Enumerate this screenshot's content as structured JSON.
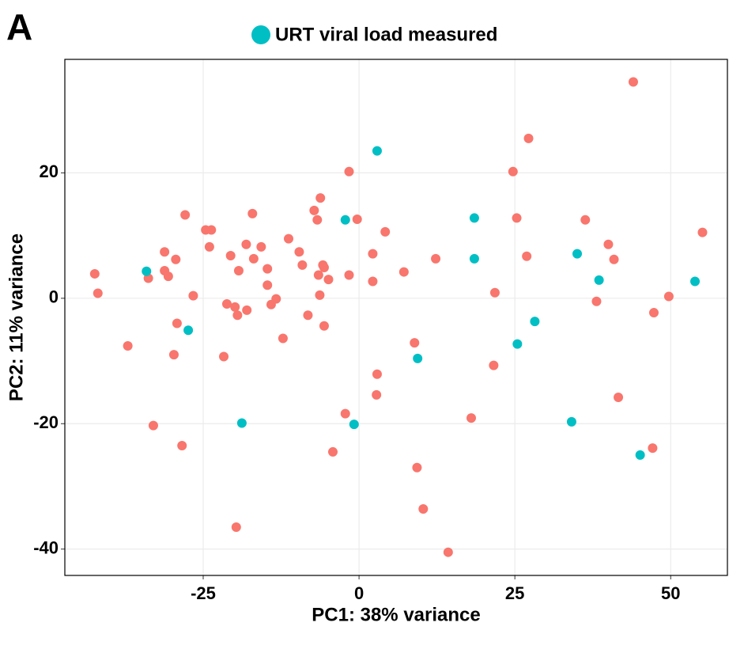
{
  "chart_data": {
    "type": "scatter",
    "panel_label": "A",
    "xlabel": "PC1: 38% variance",
    "ylabel": "PC2: 11% variance",
    "xlim": [
      -47.2,
      59.1
    ],
    "ylim": [
      -44.2,
      38.1
    ],
    "xticks": [
      -25,
      0,
      25,
      50
    ],
    "yticks": [
      -40,
      -20,
      0,
      20
    ],
    "grid": true,
    "legend": "top",
    "series": [
      {
        "color": "#f8766d",
        "x": [
          -42.4,
          -41.9,
          -37.1,
          -33.8,
          -33.0,
          -31.2,
          -31.2,
          -30.6,
          -29.4,
          -29.2,
          -29.7,
          -28.4,
          -27.9,
          -26.6,
          -24.6,
          -23.7,
          -24.0,
          -21.7,
          -21.2,
          -20.6,
          -19.9,
          -19.5,
          -19.3,
          -19.7,
          -18.1,
          -18.0,
          -17.1,
          -16.9,
          -15.7,
          -14.7,
          -14.7,
          -14.1,
          -13.3,
          -12.2,
          -11.3,
          -9.6,
          -9.1,
          -8.2,
          -7.2,
          -6.7,
          -6.2,
          -6.5,
          -6.3,
          -5.8,
          -5.6,
          -5.6,
          -4.9,
          -4.2,
          -2.2,
          -1.6,
          -1.6,
          -0.3,
          2.2,
          2.2,
          2.9,
          2.8,
          4.2,
          7.2,
          8.9,
          9.3,
          10.3,
          12.3,
          14.3,
          18.0,
          21.6,
          21.8,
          24.7,
          25.3,
          27.2,
          26.9,
          36.3,
          38.1,
          40.0,
          40.9,
          41.6,
          44.0,
          47.1,
          47.3,
          49.7,
          55.1
        ],
        "values": [
          3.9,
          0.8,
          -7.6,
          3.2,
          -20.3,
          7.4,
          4.4,
          3.5,
          6.2,
          -4.0,
          -9.0,
          -23.5,
          13.3,
          0.4,
          10.9,
          10.9,
          8.2,
          -9.3,
          -0.9,
          6.8,
          -1.4,
          -2.7,
          4.4,
          -36.5,
          8.6,
          -1.9,
          13.5,
          6.3,
          8.2,
          4.7,
          2.1,
          -1.0,
          -0.1,
          -6.4,
          9.5,
          7.4,
          5.3,
          -2.7,
          14.0,
          12.5,
          16.0,
          3.7,
          0.5,
          5.3,
          4.9,
          -4.4,
          3.0,
          -24.5,
          -18.4,
          20.2,
          3.7,
          12.6,
          7.1,
          2.7,
          -12.1,
          -15.4,
          10.6,
          4.2,
          -7.1,
          -27.0,
          -33.6,
          6.3,
          -40.5,
          -19.1,
          -10.7,
          0.9,
          20.2,
          12.8,
          25.5,
          6.7,
          12.5,
          -0.5,
          8.6,
          6.2,
          -15.8,
          34.5,
          -23.9,
          -2.3,
          0.3,
          10.5
        ]
      },
      {
        "name": "URT viral load measured",
        "color": "#00bfc4",
        "x": [
          -34.1,
          -27.4,
          -18.8,
          -2.2,
          2.9,
          -0.8,
          9.4,
          18.5,
          18.5,
          25.4,
          28.2,
          35.0,
          38.5,
          34.1,
          45.1,
          53.9
        ],
        "values": [
          4.3,
          -5.1,
          -19.9,
          12.5,
          23.5,
          -20.1,
          -9.6,
          12.8,
          6.3,
          -7.3,
          -3.7,
          7.1,
          2.9,
          -19.7,
          -25.0,
          2.7
        ]
      }
    ]
  }
}
